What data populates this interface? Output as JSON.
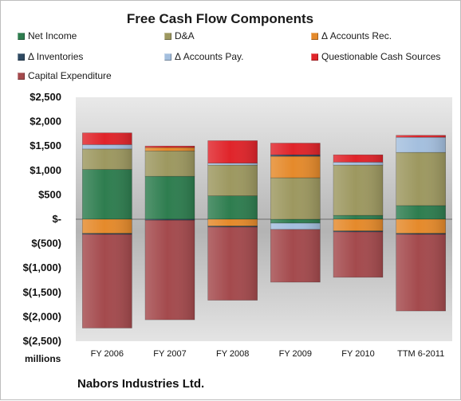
{
  "chart_data": {
    "type": "bar",
    "stacked": true,
    "title": "Free Cash Flow Components",
    "units_label": "millions",
    "company": "Nabors Industries Ltd.",
    "categories": [
      "FY 2006",
      "FY 2007",
      "FY 2008",
      "FY 2009",
      "FY 2010",
      "TTM 6-2011"
    ],
    "y_tick_labels": [
      "$2,500",
      "$2,000",
      "$1,500",
      "$1,000",
      "$500",
      "$-",
      "$(500)",
      "$(1,000)",
      "$(1,500)",
      "$(2,000)",
      "$(2,500)"
    ],
    "y_ticks": [
      2500,
      2000,
      1500,
      1000,
      500,
      0,
      -500,
      -1000,
      -1500,
      -2000,
      -2500
    ],
    "ylim": [
      -2500,
      2500
    ],
    "legend_position": "top",
    "grid": false,
    "series": [
      {
        "name": "Net Income",
        "color": "#2e7d4f",
        "values": [
          1020,
          880,
          480,
          -80,
          80,
          280
        ]
      },
      {
        "name": "D&A",
        "color": "#9d9860",
        "values": [
          420,
          520,
          630,
          850,
          1030,
          1090
        ]
      },
      {
        "name": "Δ Accounts Rec.",
        "color": "#e58a2b",
        "values": [
          -290,
          70,
          -140,
          440,
          -240,
          -290
        ]
      },
      {
        "name": "Δ Inventories",
        "color": "#2f4a62",
        "values": [
          -20,
          -20,
          -20,
          30,
          -20,
          -20
        ]
      },
      {
        "name": "Δ Accounts Pay.",
        "color": "#a4bfde",
        "values": [
          90,
          0,
          40,
          -130,
          60,
          310
        ]
      },
      {
        "name": "Questionable Cash Sources",
        "color": "#e0242a",
        "values": [
          240,
          30,
          460,
          240,
          150,
          40
        ]
      },
      {
        "name": "Capital Expenditure",
        "color": "#a44a4d",
        "values": [
          -1920,
          -2040,
          -1500,
          -1080,
          -930,
          -1570
        ]
      }
    ]
  }
}
